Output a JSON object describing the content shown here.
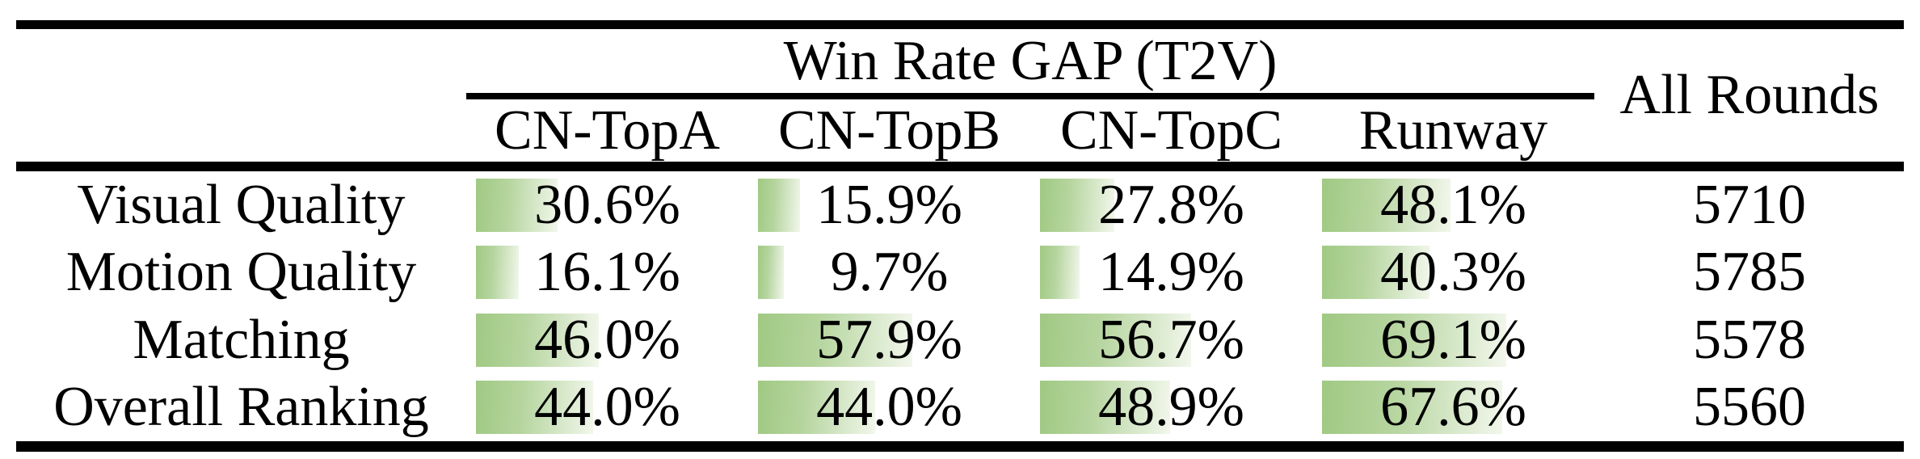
{
  "table": {
    "group_title": "Win Rate GAP (T2V)",
    "all_rounds_header": "All Rounds",
    "columns": [
      "CN-TopA",
      "CN-TopB",
      "CN-TopC",
      "Runway"
    ],
    "rows": [
      {
        "label": "Visual Quality",
        "values": [
          30.6,
          15.9,
          27.8,
          48.1
        ],
        "display": [
          "30.6%",
          "15.9%",
          "27.8%",
          "48.1%"
        ],
        "all_rounds": "5710"
      },
      {
        "label": "Motion Quality",
        "values": [
          16.1,
          9.7,
          14.9,
          40.3
        ],
        "display": [
          "16.1%",
          "9.7%",
          "14.9%",
          "40.3%"
        ],
        "all_rounds": "5785"
      },
      {
        "label": "Matching",
        "values": [
          46.0,
          57.9,
          56.7,
          69.1
        ],
        "display": [
          "46.0%",
          "57.9%",
          "56.7%",
          "69.1%"
        ],
        "all_rounds": "5578"
      },
      {
        "label": "Overall Ranking",
        "values": [
          44.0,
          44.0,
          48.9,
          67.6
        ],
        "display": [
          "44.0%",
          "44.0%",
          "48.9%",
          "67.6%"
        ],
        "all_rounds": "5560"
      }
    ],
    "colors": {
      "bar_gradient_start": "#a0c983",
      "bar_gradient_end": "#f2f7ec",
      "rule_color": "#000000",
      "text_color": "#000000"
    }
  },
  "chart_data": {
    "type": "table",
    "title": "Win Rate GAP (T2V)",
    "categories": [
      "Visual Quality",
      "Motion Quality",
      "Matching",
      "Overall Ranking"
    ],
    "series": [
      {
        "name": "CN-TopA",
        "values": [
          30.6,
          16.1,
          46.0,
          44.0
        ],
        "unit": "%"
      },
      {
        "name": "CN-TopB",
        "values": [
          15.9,
          9.7,
          57.9,
          44.0
        ],
        "unit": "%"
      },
      {
        "name": "CN-TopC",
        "values": [
          27.8,
          14.9,
          56.7,
          48.9
        ],
        "unit": "%"
      },
      {
        "name": "Runway",
        "values": [
          48.1,
          40.3,
          69.1,
          67.6
        ],
        "unit": "%"
      },
      {
        "name": "All Rounds",
        "values": [
          5710,
          5785,
          5578,
          5560
        ],
        "unit": "count"
      }
    ],
    "bar_range_percent": [
      0,
      100
    ],
    "notes": "In-cell horizontal bars; bar length proportional to percent value"
  }
}
